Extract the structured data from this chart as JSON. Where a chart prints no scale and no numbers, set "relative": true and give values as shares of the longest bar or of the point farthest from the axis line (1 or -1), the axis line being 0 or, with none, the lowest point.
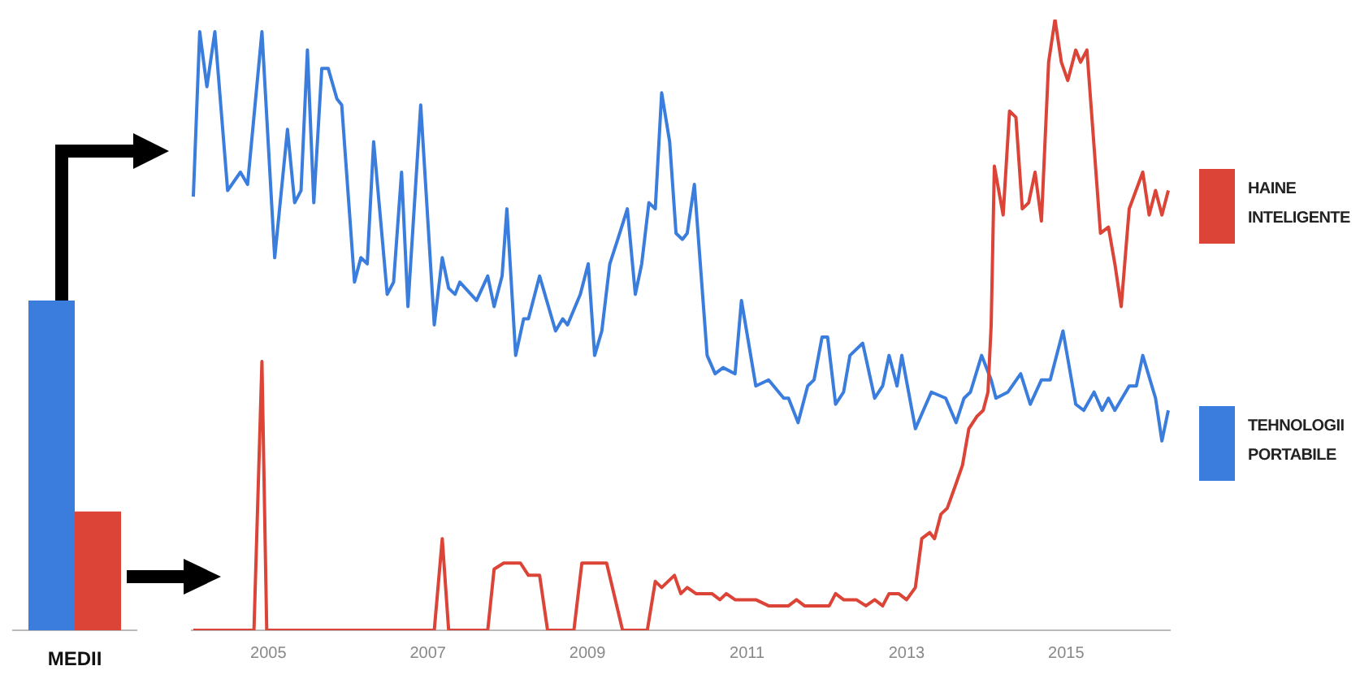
{
  "chart_data": [
    {
      "type": "bar",
      "categories": [
        "MEDII"
      ],
      "relative": true,
      "series": [
        {
          "color": "#3b7ddd",
          "values": [
            1
          ]
        },
        {
          "color": "#db4437",
          "values": [
            0.36
          ]
        }
      ]
    },
    {
      "type": "line",
      "relative": true,
      "legend": "right",
      "xlim": [
        2004.04,
        2016.3
      ],
      "xticks": [
        2005,
        2007,
        2009,
        2011,
        2013,
        2015
      ],
      "series": [
        {
          "name": "HAINE INTELIGENTE",
          "color": "#db4437",
          "x": [
            2004.06,
            2004.82,
            2004.92,
            2004.98,
            2007.08,
            2007.18,
            2007.26,
            2007.75,
            2007.83,
            2007.95,
            2008.16,
            2008.26,
            2008.4,
            2008.5,
            2008.83,
            2008.93,
            2009.24,
            2009.44,
            2009.75,
            2009.85,
            2009.93,
            2010.09,
            2010.17,
            2010.25,
            2010.36,
            2010.56,
            2010.66,
            2010.74,
            2010.85,
            2011.11,
            2011.27,
            2011.52,
            2011.62,
            2011.72,
            2012.03,
            2012.11,
            2012.21,
            2012.37,
            2012.49,
            2012.6,
            2012.7,
            2012.78,
            2012.9,
            2013.0,
            2013.11,
            2013.19,
            2013.29,
            2013.35,
            2013.43,
            2013.51,
            2013.62,
            2013.7,
            2013.78,
            2013.88,
            2013.96,
            2014.02,
            2014.06,
            2014.1,
            2014.21,
            2014.29,
            2014.37,
            2014.45,
            2014.53,
            2014.61,
            2014.69,
            2014.78,
            2014.86,
            2014.94,
            2015.02,
            2015.12,
            2015.18,
            2015.26,
            2015.43,
            2015.53,
            2015.61,
            2015.69,
            2015.79,
            2015.96,
            2016.04,
            2016.12,
            2016.2,
            2016.28
          ],
          "values": [
            0,
            0,
            0.44,
            0,
            0,
            0.15,
            0,
            0,
            0.1,
            0.11,
            0.11,
            0.09,
            0.09,
            0,
            0,
            0.11,
            0.11,
            0,
            0,
            0.08,
            0.07,
            0.09,
            0.06,
            0.07,
            0.06,
            0.06,
            0.05,
            0.06,
            0.05,
            0.05,
            0.04,
            0.04,
            0.05,
            0.04,
            0.04,
            0.06,
            0.05,
            0.05,
            0.04,
            0.05,
            0.04,
            0.06,
            0.06,
            0.05,
            0.07,
            0.15,
            0.16,
            0.15,
            0.19,
            0.2,
            0.24,
            0.27,
            0.33,
            0.35,
            0.36,
            0.39,
            0.5,
            0.76,
            0.68,
            0.85,
            0.84,
            0.69,
            0.7,
            0.75,
            0.67,
            0.93,
            1,
            0.93,
            0.9,
            0.95,
            0.93,
            0.95,
            0.65,
            0.66,
            0.6,
            0.53,
            0.69,
            0.75,
            0.68,
            0.72,
            0.68,
            0.72
          ]
        },
        {
          "name": "TEHNOLOGII PORTABILE",
          "color": "#3b7ddd",
          "x": [
            2004.06,
            2004.14,
            2004.23,
            2004.33,
            2004.49,
            2004.65,
            2004.74,
            2004.92,
            2005.08,
            2005.24,
            2005.33,
            2005.41,
            2005.49,
            2005.57,
            2005.67,
            2005.75,
            2005.86,
            2005.92,
            2006.08,
            2006.16,
            2006.24,
            2006.32,
            2006.49,
            2006.57,
            2006.67,
            2006.75,
            2006.91,
            2007.08,
            2007.18,
            2007.26,
            2007.34,
            2007.4,
            2007.61,
            2007.75,
            2007.83,
            2007.93,
            2007.99,
            2008.1,
            2008.2,
            2008.26,
            2008.4,
            2008.6,
            2008.69,
            2008.75,
            2008.91,
            2009.01,
            2009.09,
            2009.18,
            2009.28,
            2009.38,
            2009.5,
            2009.6,
            2009.68,
            2009.77,
            2009.85,
            2009.93,
            2010.03,
            2010.11,
            2010.19,
            2010.25,
            2010.34,
            2010.5,
            2010.6,
            2010.7,
            2010.85,
            2010.93,
            2011.11,
            2011.27,
            2011.46,
            2011.52,
            2011.64,
            2011.76,
            2011.84,
            2011.94,
            2012.01,
            2012.11,
            2012.21,
            2012.29,
            2012.45,
            2012.6,
            2012.7,
            2012.78,
            2012.88,
            2012.94,
            2013.11,
            2013.31,
            2013.49,
            2013.62,
            2013.72,
            2013.8,
            2013.94,
            2014.06,
            2014.12,
            2014.27,
            2014.43,
            2014.55,
            2014.69,
            2014.8,
            2014.96,
            2015.12,
            2015.22,
            2015.35,
            2015.45,
            2015.53,
            2015.61,
            2015.79,
            2015.88,
            2015.96,
            2016.12,
            2016.2,
            2016.28
          ],
          "values": [
            0.71,
            0.98,
            0.89,
            0.98,
            0.72,
            0.75,
            0.73,
            0.98,
            0.61,
            0.82,
            0.7,
            0.72,
            0.95,
            0.7,
            0.92,
            0.92,
            0.87,
            0.86,
            0.57,
            0.61,
            0.6,
            0.8,
            0.55,
            0.57,
            0.75,
            0.53,
            0.86,
            0.5,
            0.61,
            0.56,
            0.55,
            0.57,
            0.54,
            0.58,
            0.53,
            0.58,
            0.69,
            0.45,
            0.51,
            0.51,
            0.58,
            0.49,
            0.51,
            0.5,
            0.55,
            0.6,
            0.45,
            0.49,
            0.6,
            0.64,
            0.69,
            0.55,
            0.6,
            0.7,
            0.69,
            0.88,
            0.8,
            0.65,
            0.64,
            0.65,
            0.73,
            0.45,
            0.42,
            0.43,
            0.42,
            0.54,
            0.4,
            0.41,
            0.38,
            0.38,
            0.34,
            0.4,
            0.41,
            0.48,
            0.48,
            0.37,
            0.39,
            0.45,
            0.47,
            0.38,
            0.4,
            0.45,
            0.4,
            0.45,
            0.33,
            0.39,
            0.38,
            0.34,
            0.38,
            0.39,
            0.45,
            0.41,
            0.38,
            0.39,
            0.42,
            0.37,
            0.41,
            0.41,
            0.49,
            0.37,
            0.36,
            0.39,
            0.36,
            0.38,
            0.36,
            0.4,
            0.4,
            0.45,
            0.38,
            0.31,
            0.36
          ]
        }
      ]
    }
  ]
}
